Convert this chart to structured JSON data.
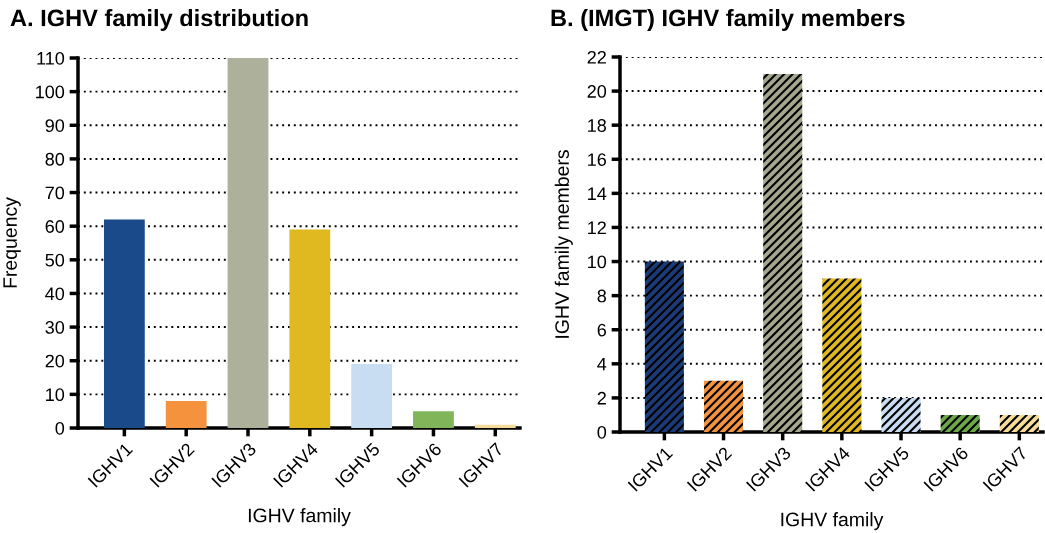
{
  "chart_data": [
    {
      "type": "bar",
      "title": "A. IGHV family distribution",
      "xlabel": "IGHV family",
      "ylabel": "Frequency",
      "categories": [
        "IGHV1",
        "IGHV2",
        "IGHV3",
        "IGHV4",
        "IGHV5",
        "IGHV6",
        "IGHV7"
      ],
      "values": [
        62,
        8,
        110,
        59,
        19,
        5,
        1
      ],
      "colors": [
        "#1a4a8a",
        "#f4923e",
        "#adb09a",
        "#e0b820",
        "#c8ddf2",
        "#80b55a",
        "#f6dc9a"
      ],
      "ylim": [
        0,
        110
      ],
      "yticks": [
        0,
        10,
        20,
        30,
        40,
        50,
        60,
        70,
        80,
        90,
        100,
        110
      ],
      "grid": "y"
    },
    {
      "type": "bar",
      "title": "B. (IMGT) IGHV family members",
      "xlabel": "IGHV family",
      "ylabel": "IGHV family members",
      "categories": [
        "IGHV1",
        "IGHV2",
        "IGHV3",
        "IGHV4",
        "IGHV5",
        "IGHV6",
        "IGHV7"
      ],
      "values": [
        10,
        3,
        21,
        9,
        2,
        1,
        1
      ],
      "colors": [
        "#1a3a78",
        "#f4923e",
        "#a4a78e",
        "#e0b820",
        "#c8ddf2",
        "#6aa84a",
        "#f6dc9a"
      ],
      "ylim": [
        0,
        22
      ],
      "yticks": [
        0,
        2,
        4,
        6,
        8,
        10,
        12,
        14,
        16,
        18,
        20,
        22
      ],
      "grid": "y"
    }
  ]
}
